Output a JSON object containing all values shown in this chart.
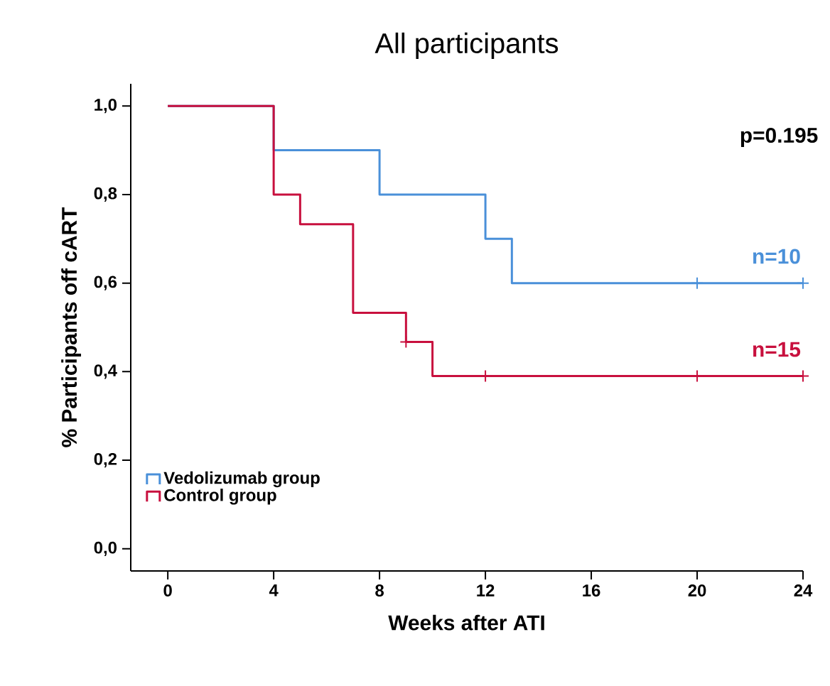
{
  "chart_data": {
    "type": "step",
    "title": "All participants",
    "xlabel": "Weeks after ATI",
    "ylabel": "% Participants off cART",
    "xlim": [
      -1.4,
      24
    ],
    "ylim": [
      -0.05,
      1.05
    ],
    "xticks": [
      0,
      4,
      8,
      12,
      16,
      20,
      24
    ],
    "yticks": [
      {
        "value": 0,
        "label": "0,0"
      },
      {
        "value": 0.2,
        "label": "0,2"
      },
      {
        "value": 0.4,
        "label": "0,4"
      },
      {
        "value": 0.6,
        "label": "0,6"
      },
      {
        "value": 0.8,
        "label": "0,8"
      },
      {
        "value": 1.0,
        "label": "1,0"
      }
    ],
    "series": [
      {
        "name": "Vedolizumab group",
        "color": "#4a90d9",
        "marker": "none",
        "x": [
          0,
          4,
          8,
          12,
          13,
          24
        ],
        "values": [
          1.0,
          0.9,
          0.8,
          0.7,
          0.6,
          0.6
        ]
      },
      {
        "name": "Control group",
        "color": "#c8103e",
        "marker": "none",
        "x": [
          0,
          4,
          5,
          7,
          9,
          10,
          24
        ],
        "values": [
          1.0,
          0.8,
          0.733,
          0.533,
          0.467,
          0.39,
          0.39
        ]
      },
      {
        "type": "scatter",
        "color": "#4a90d9",
        "marker": "cross",
        "x": [
          20,
          24
        ],
        "values": [
          0.6,
          0.6
        ]
      },
      {
        "type": "scatter",
        "color": "#c8103e",
        "marker": "cross",
        "x": [
          9,
          12,
          20,
          24
        ],
        "values": [
          0.467,
          0.39,
          0.39,
          0.39
        ]
      }
    ],
    "legend": "bottom left",
    "grid": false,
    "annotations": [
      "p=0.195",
      "n=10",
      "n=15"
    ]
  }
}
